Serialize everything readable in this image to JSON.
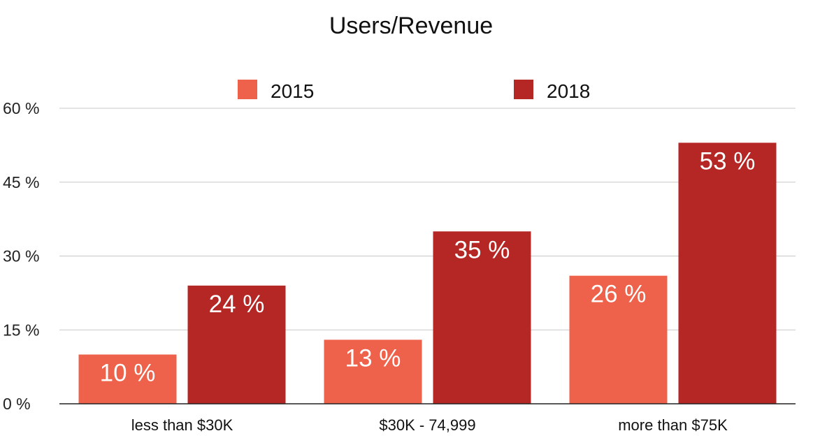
{
  "chart_data": {
    "type": "bar",
    "title": "Users/Revenue",
    "categories": [
      "less than $30K",
      "$30K - 74,999",
      "more than $75K"
    ],
    "series": [
      {
        "name": "2015",
        "values": [
          10,
          13,
          26
        ],
        "color": "#ee614a"
      },
      {
        "name": "2018",
        "values": [
          24,
          35,
          53
        ],
        "color": "#b52724"
      }
    ],
    "data_labels": [
      [
        "10 %",
        "13 %",
        "26 %"
      ],
      [
        "24 %",
        "35 %",
        "53 %"
      ]
    ],
    "ylim": [
      0,
      60
    ],
    "yticks": [
      0,
      15,
      30,
      45,
      60
    ],
    "ytick_labels": [
      "0 %",
      "15 %",
      "30 %",
      "45 %",
      "60 %"
    ],
    "xlabel": "",
    "ylabel": "",
    "grid": true,
    "legend_position": "top-center"
  }
}
